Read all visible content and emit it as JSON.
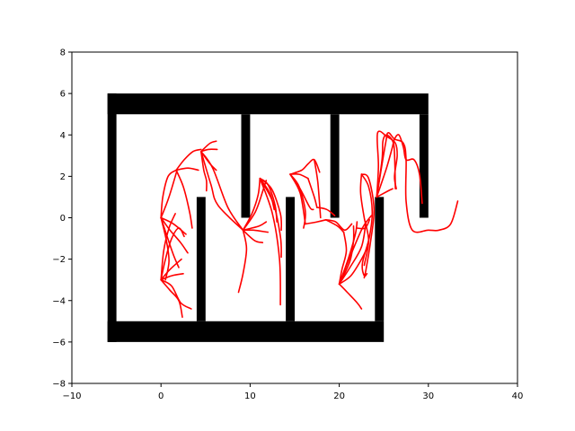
{
  "chart_data": {
    "type": "line",
    "title": "",
    "xlabel": "",
    "ylabel": "",
    "xlim": [
      -10,
      40
    ],
    "ylim": [
      -8,
      8
    ],
    "grid": false,
    "legend": "none",
    "xticks": [
      -10,
      0,
      10,
      20,
      30,
      40
    ],
    "yticks": [
      -8,
      -6,
      -4,
      -2,
      0,
      2,
      4,
      6,
      8
    ],
    "xtick_labels": [
      "−10",
      "0",
      "10",
      "20",
      "30",
      "40"
    ],
    "ytick_labels": [
      "−8",
      "−6",
      "−4",
      "−2",
      "0",
      "2",
      "4",
      "6",
      "8"
    ],
    "wall_color": "#000000",
    "path_color": "#ff0000",
    "walls": [
      [
        [
          -6,
          6
        ],
        [
          30,
          6
        ],
        [
          30,
          5
        ],
        [
          -6,
          5
        ]
      ],
      [
        [
          -6,
          6
        ],
        [
          -5,
          6
        ],
        [
          -5,
          -6
        ],
        [
          -6,
          -6
        ]
      ],
      [
        [
          -6,
          -5
        ],
        [
          25,
          -5
        ],
        [
          25,
          -6
        ],
        [
          -6,
          -6
        ]
      ],
      [
        [
          9,
          5
        ],
        [
          10,
          5
        ],
        [
          10,
          0
        ],
        [
          9,
          0
        ]
      ],
      [
        [
          19,
          5
        ],
        [
          20,
          5
        ],
        [
          20,
          0
        ],
        [
          19,
          0
        ]
      ],
      [
        [
          29,
          5
        ],
        [
          30,
          5
        ],
        [
          30,
          0
        ],
        [
          29,
          0
        ]
      ],
      [
        [
          4,
          1
        ],
        [
          5,
          1
        ],
        [
          5,
          -5
        ],
        [
          4,
          -5
        ]
      ],
      [
        [
          14,
          1
        ],
        [
          15,
          1
        ],
        [
          15,
          -5
        ],
        [
          14,
          -5
        ]
      ],
      [
        [
          24,
          1
        ],
        [
          25,
          1
        ],
        [
          25,
          -5
        ],
        [
          24,
          -5
        ]
      ]
    ],
    "paths": [
      [
        [
          0,
          -3
        ],
        [
          0.5,
          -2
        ],
        [
          1.2,
          -1
        ],
        [
          2,
          -0.5
        ],
        [
          2.6,
          -0.9
        ]
      ],
      [
        [
          0,
          -3
        ],
        [
          1,
          -3.5
        ],
        [
          2,
          -4
        ],
        [
          2.4,
          -4.8
        ]
      ],
      [
        [
          0,
          -3
        ],
        [
          1.2,
          -3.3
        ],
        [
          2.2,
          -4.1
        ],
        [
          3.4,
          -4.4
        ]
      ],
      [
        [
          0,
          -3
        ],
        [
          0.3,
          -1.6
        ],
        [
          0.9,
          -0.5
        ],
        [
          1.6,
          0.2
        ]
      ],
      [
        [
          0,
          -3
        ],
        [
          1,
          -2.5
        ],
        [
          2.3,
          -2
        ]
      ],
      [
        [
          0,
          -3
        ],
        [
          1.2,
          -2.8
        ],
        [
          2.5,
          -2.7
        ]
      ],
      [
        [
          0,
          0
        ],
        [
          0.6,
          -0.8
        ],
        [
          1.4,
          -1.8
        ],
        [
          2,
          -2.4
        ]
      ],
      [
        [
          0,
          0
        ],
        [
          1,
          -0.6
        ],
        [
          2.2,
          -1.2
        ],
        [
          3,
          -1.7
        ]
      ],
      [
        [
          0,
          0
        ],
        [
          1.4,
          -0.3
        ],
        [
          2.8,
          -0.8
        ]
      ],
      [
        [
          0,
          0
        ],
        [
          0.2,
          1
        ],
        [
          0.8,
          2
        ],
        [
          1.7,
          2.3
        ]
      ],
      [
        [
          0,
          0
        ],
        [
          0.6,
          -1.1
        ],
        [
          0.9,
          -2.1
        ],
        [
          0.5,
          -3
        ]
      ],
      [
        [
          0,
          0
        ],
        [
          0.9,
          1
        ],
        [
          1.8,
          2.3
        ]
      ],
      [
        [
          1.7,
          2.3
        ],
        [
          3,
          2.4
        ],
        [
          4.2,
          2.3
        ]
      ],
      [
        [
          1.7,
          2.3
        ],
        [
          2.6,
          2.8
        ],
        [
          3.6,
          3.2
        ],
        [
          4.5,
          3.3
        ]
      ],
      [
        [
          1.7,
          2.3
        ],
        [
          2.5,
          1.5
        ],
        [
          3.2,
          0.3
        ],
        [
          3.5,
          -0.5
        ]
      ],
      [
        [
          4.5,
          3.2
        ],
        [
          5.3,
          3.3
        ],
        [
          6.3,
          3.3
        ]
      ],
      [
        [
          4.5,
          3.2
        ],
        [
          5.5,
          3.6
        ],
        [
          6.2,
          3.7
        ]
      ],
      [
        [
          4.5,
          3.2
        ],
        [
          5.5,
          2.6
        ],
        [
          6.2,
          2.3
        ]
      ],
      [
        [
          4.5,
          3.2
        ],
        [
          4.8,
          2.3
        ],
        [
          5.1,
          1.8
        ],
        [
          5.1,
          1.3
        ]
      ],
      [
        [
          4.5,
          3.2
        ],
        [
          5.6,
          1.6
        ],
        [
          6.4,
          0.6
        ],
        [
          9.2,
          -0.6
        ]
      ],
      [
        [
          4.5,
          3.2
        ],
        [
          5.8,
          2.4
        ],
        [
          7.5,
          0.5
        ],
        [
          9.2,
          -0.6
        ]
      ],
      [
        [
          9.2,
          -0.6
        ],
        [
          10.4,
          -0.6
        ],
        [
          12,
          -0.7
        ]
      ],
      [
        [
          9.2,
          -0.6
        ],
        [
          9.6,
          -1.5
        ],
        [
          9.2,
          -2.7
        ],
        [
          8.7,
          -3.6
        ]
      ],
      [
        [
          9.2,
          -0.6
        ],
        [
          10.2,
          0.2
        ],
        [
          10.9,
          1.1
        ],
        [
          11.1,
          1.9
        ]
      ],
      [
        [
          9.2,
          -0.6
        ],
        [
          10.5,
          -1.1
        ],
        [
          11.4,
          -1.2
        ]
      ],
      [
        [
          9.2,
          -0.6
        ],
        [
          10.6,
          0.3
        ],
        [
          11.5,
          1.4
        ],
        [
          11.8,
          1.8
        ]
      ],
      [
        [
          9.2,
          -0.6
        ],
        [
          11,
          -0.4
        ],
        [
          11.8,
          -0.2
        ]
      ],
      [
        [
          11.1,
          1.9
        ],
        [
          12,
          1.6
        ],
        [
          12.8,
          0.6
        ],
        [
          13,
          -0.2
        ]
      ],
      [
        [
          11.1,
          1.9
        ],
        [
          12.4,
          1.4
        ],
        [
          13.4,
          0.2
        ],
        [
          13.5,
          -0.6
        ]
      ],
      [
        [
          11.1,
          1.9
        ],
        [
          12.6,
          0.7
        ],
        [
          13.4,
          -0.9
        ],
        [
          13.5,
          -1.9
        ]
      ],
      [
        [
          11.1,
          1.9
        ],
        [
          12.5,
          0.2
        ],
        [
          13.3,
          -2
        ],
        [
          13.4,
          -4.2
        ]
      ],
      [
        [
          11.1,
          1.9
        ],
        [
          12.2,
          1.2
        ],
        [
          12.7,
          0.4
        ]
      ],
      [
        [
          14.5,
          2.1
        ],
        [
          15.5,
          2.1
        ],
        [
          16.5,
          1.9
        ]
      ],
      [
        [
          14.5,
          2.1
        ],
        [
          15.8,
          2.3
        ],
        [
          16.5,
          2.6
        ],
        [
          17.2,
          2.8
        ],
        [
          17.8,
          2.2
        ]
      ],
      [
        [
          14.5,
          2.1
        ],
        [
          15.6,
          1.2
        ],
        [
          16.2,
          -0.3
        ]
      ],
      [
        [
          14.5,
          2.1
        ],
        [
          15.6,
          1.4
        ],
        [
          16.7,
          0.5
        ],
        [
          17.1,
          0.4
        ]
      ],
      [
        [
          14.5,
          2.1
        ],
        [
          15.5,
          1.5
        ],
        [
          16.2,
          0.3
        ],
        [
          16,
          -0.5
        ]
      ],
      [
        [
          16.2,
          -0.3
        ],
        [
          17.5,
          -0.2
        ],
        [
          18.5,
          -0.1
        ]
      ],
      [
        [
          16.5,
          1.9
        ],
        [
          17.2,
          1
        ],
        [
          17.5,
          0.5
        ]
      ],
      [
        [
          17.2,
          2.8
        ],
        [
          17.6,
          1.7
        ],
        [
          17.9,
          0
        ]
      ],
      [
        [
          17.5,
          0.5
        ],
        [
          18.6,
          0.4
        ],
        [
          19.5,
          0.1
        ]
      ],
      [
        [
          18.5,
          -0.1
        ],
        [
          19.8,
          -0.4
        ],
        [
          20.5,
          -0.7
        ]
      ],
      [
        [
          18.5,
          -0.1
        ],
        [
          19.6,
          -0.2
        ],
        [
          20.6,
          -0.6
        ],
        [
          21.4,
          -0.3
        ]
      ],
      [
        [
          20.5,
          -0.7
        ],
        [
          20.8,
          -1.6
        ],
        [
          20.3,
          -2.5
        ],
        [
          20,
          -3.2
        ]
      ],
      [
        [
          20,
          -3.2
        ],
        [
          21.3,
          -2.8
        ],
        [
          22.5,
          -2
        ],
        [
          23.2,
          -1.4
        ]
      ],
      [
        [
          20,
          -3.2
        ],
        [
          20.9,
          -3.6
        ],
        [
          22,
          -4.1
        ],
        [
          22.5,
          -4.4
        ]
      ],
      [
        [
          20,
          -3.2
        ],
        [
          21,
          -2
        ],
        [
          21.8,
          -0.8
        ],
        [
          22,
          -0.2
        ]
      ],
      [
        [
          20,
          -3.2
        ],
        [
          21.2,
          -2.1
        ],
        [
          21.6,
          -1.1
        ],
        [
          21.6,
          -0.4
        ]
      ],
      [
        [
          20,
          -3.2
        ],
        [
          21.2,
          -2.4
        ],
        [
          22.5,
          -1.4
        ],
        [
          23,
          -0.2
        ]
      ],
      [
        [
          20,
          -3.2
        ],
        [
          21.2,
          -1.9
        ],
        [
          22.6,
          -0.5
        ],
        [
          23.6,
          0.1
        ]
      ],
      [
        [
          22,
          -0.5
        ],
        [
          22.9,
          -0.5
        ],
        [
          23.4,
          -0.1
        ]
      ],
      [
        [
          22.5,
          2.1
        ],
        [
          23.3,
          1.5
        ],
        [
          23.7,
          0.3
        ],
        [
          23.4,
          -0.9
        ],
        [
          22.6,
          -2.2
        ],
        [
          22.8,
          -2.8
        ],
        [
          23.1,
          -2.7
        ]
      ],
      [
        [
          22.5,
          2.1
        ],
        [
          23.3,
          1.9
        ],
        [
          23.9,
          0.4
        ],
        [
          23.5,
          -1.2
        ],
        [
          23,
          -2.5
        ],
        [
          22.8,
          -2.9
        ]
      ],
      [
        [
          22.5,
          2.1
        ],
        [
          22.4,
          1.2
        ],
        [
          22.8,
          0
        ],
        [
          23.3,
          -1.1
        ],
        [
          22.8,
          -2.3
        ]
      ],
      [
        [
          24.2,
          1
        ],
        [
          25.5,
          1.3
        ],
        [
          26,
          1.4
        ]
      ],
      [
        [
          24.2,
          1
        ],
        [
          24.4,
          2.5
        ],
        [
          24.3,
          4.1
        ],
        [
          25.4,
          3.9
        ],
        [
          26.3,
          3.6
        ],
        [
          26.5,
          3
        ],
        [
          26.2,
          2
        ],
        [
          26.4,
          1.4
        ]
      ],
      [
        [
          24.2,
          1
        ],
        [
          25.3,
          2.4
        ],
        [
          25.9,
          3.3
        ],
        [
          26.2,
          3.8
        ],
        [
          26.7,
          4
        ],
        [
          27.2,
          3.4
        ],
        [
          27.5,
          2.8
        ],
        [
          28.4,
          2.8
        ],
        [
          29,
          2.1
        ],
        [
          29.3,
          0.7
        ]
      ],
      [
        [
          24.2,
          1
        ],
        [
          25.2,
          3.6
        ],
        [
          25.5,
          4.1
        ],
        [
          26.2,
          3.8
        ],
        [
          27.2,
          3.6
        ],
        [
          27.5,
          2.8
        ],
        [
          27.5,
          0.8
        ],
        [
          28.2,
          -0.6
        ],
        [
          30,
          -0.6
        ],
        [
          31.2,
          -0.6
        ],
        [
          32.5,
          -0.3
        ],
        [
          33.3,
          0.8
        ]
      ],
      [
        [
          24.2,
          1
        ],
        [
          24.8,
          2.8
        ],
        [
          24.9,
          3.7
        ],
        [
          25.3,
          4
        ],
        [
          26,
          3.7
        ],
        [
          26.2,
          3.1
        ],
        [
          26.3,
          1.4
        ]
      ]
    ]
  }
}
